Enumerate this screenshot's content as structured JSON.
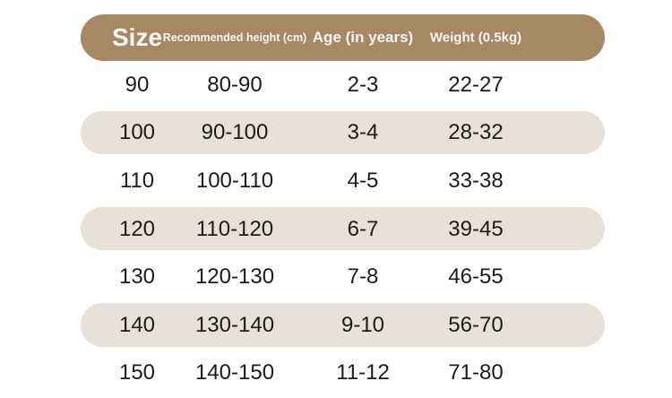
{
  "colors": {
    "header_bg": "#a78865",
    "header_text": "#faf7f2",
    "row_alt_bg": "#e8e1d8",
    "cell_text": "#1b1b1b",
    "page_bg": "#ffffff"
  },
  "size_chart": {
    "headers": {
      "size": "Size",
      "height": "Recommended height (cm)",
      "age": "Age (in years)",
      "weight": "Weight (0.5kg)"
    },
    "rows": [
      {
        "size": "90",
        "height": "80-90",
        "age": "2-3",
        "weight": "22-27"
      },
      {
        "size": "100",
        "height": "90-100",
        "age": "3-4",
        "weight": "28-32"
      },
      {
        "size": "110",
        "height": "100-110",
        "age": "4-5",
        "weight": "33-38"
      },
      {
        "size": "120",
        "height": "110-120",
        "age": "6-7",
        "weight": "39-45"
      },
      {
        "size": "130",
        "height": "120-130",
        "age": "7-8",
        "weight": "46-55"
      },
      {
        "size": "140",
        "height": "130-140",
        "age": "9-10",
        "weight": "56-70"
      },
      {
        "size": "150",
        "height": "140-150",
        "age": "11-12",
        "weight": "71-80"
      }
    ]
  },
  "chart_data": {
    "type": "table",
    "title": "Children garment size chart",
    "columns": [
      "Size",
      "Recommended height (cm)",
      "Age (in years)",
      "Weight (0.5kg)"
    ],
    "rows": [
      [
        "90",
        "80-90",
        "2-3",
        "22-27"
      ],
      [
        "100",
        "90-100",
        "3-4",
        "28-32"
      ],
      [
        "110",
        "100-110",
        "4-5",
        "33-38"
      ],
      [
        "120",
        "110-120",
        "6-7",
        "39-45"
      ],
      [
        "130",
        "120-130",
        "7-8",
        "46-55"
      ],
      [
        "140",
        "130-140",
        "9-10",
        "56-70"
      ],
      [
        "150",
        "140-150",
        "11-12",
        "71-80"
      ]
    ],
    "layout": {
      "header_style": "brown pill",
      "alternating_rows": "beige pill on rows 2, 4, 6",
      "grid": false
    }
  }
}
